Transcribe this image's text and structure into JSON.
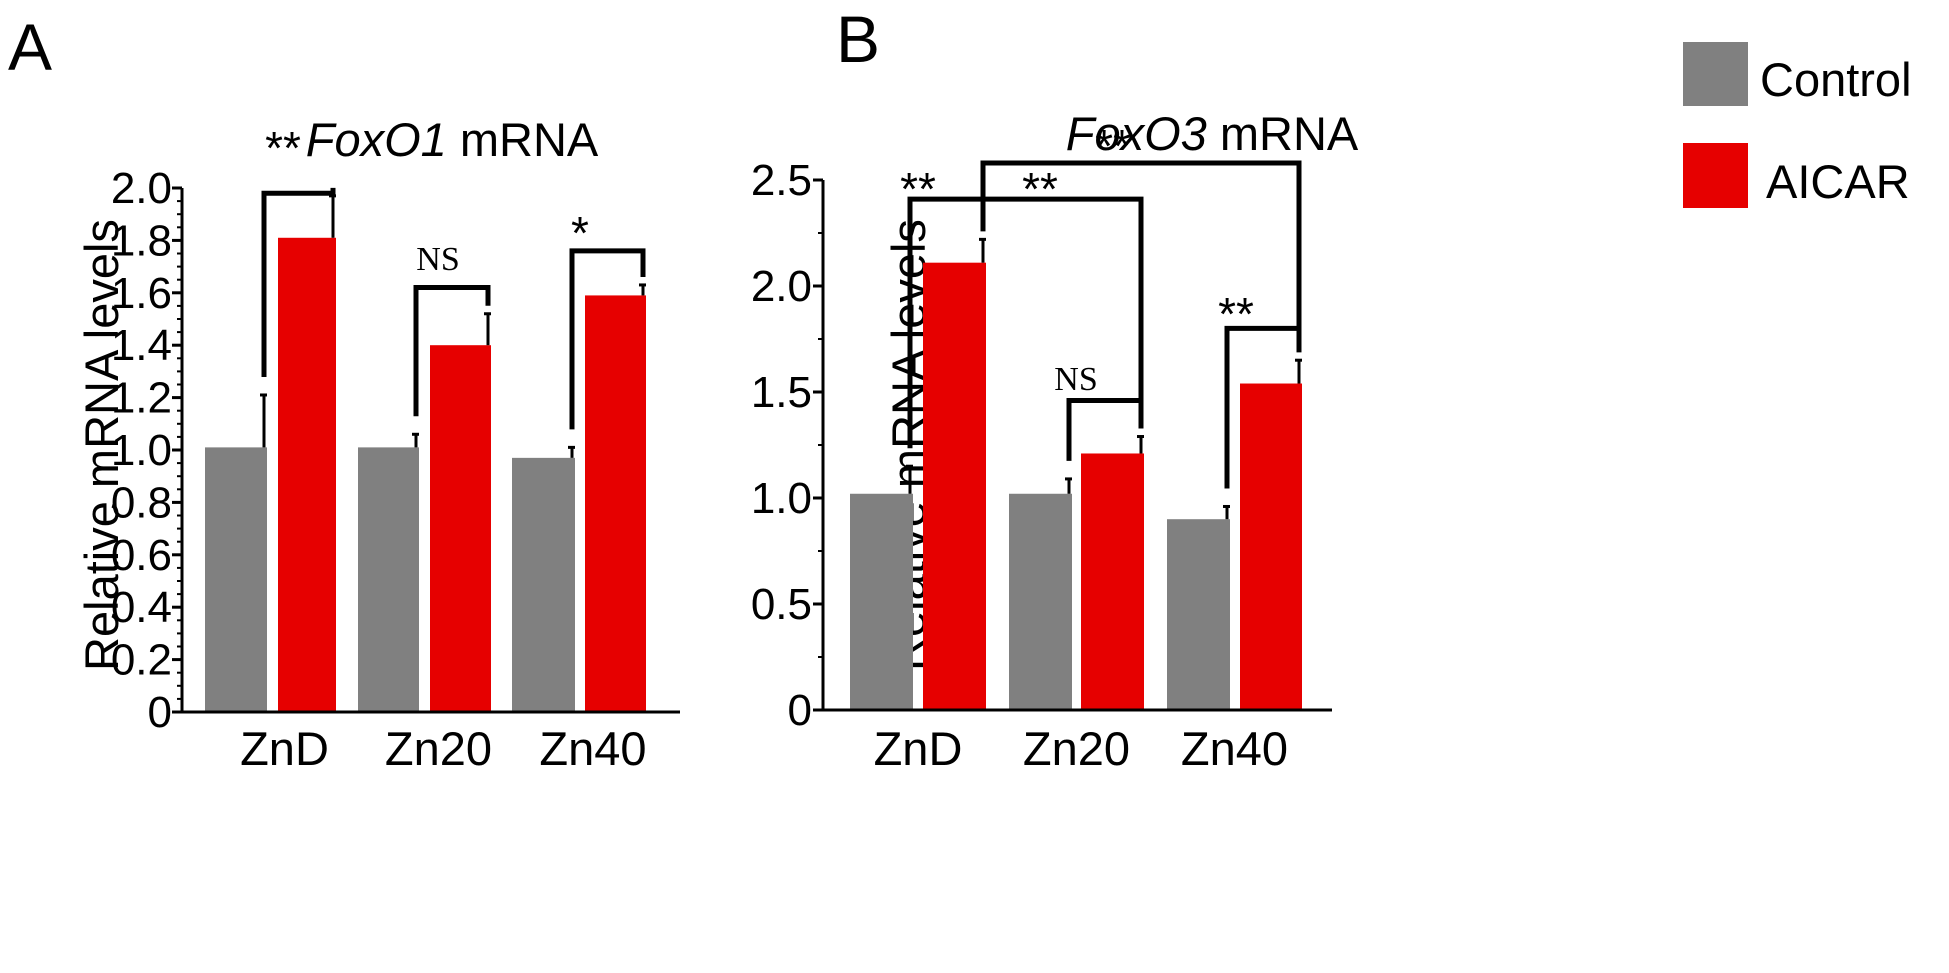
{
  "panels": [
    {
      "panel_label": "A",
      "title_italic": "FoxO1",
      "title_rest": " mRNA"
    },
    {
      "panel_label": "B",
      "title_italic": "FoxO3",
      "title_rest": " mRNA"
    }
  ],
  "legend": {
    "items": [
      {
        "label": "Control",
        "color": "#808080"
      },
      {
        "label": "AICAR",
        "color": "#e60000"
      }
    ]
  },
  "chart_data": [
    {
      "type": "bar",
      "title": "FoxO1 mRNA",
      "xlabel": "",
      "ylabel": "Relative mRNA levels",
      "ylim": [
        0,
        2.0
      ],
      "yticks": [
        "0",
        "0.2",
        "0.4",
        "0.6",
        "0.8",
        "1.0",
        "1.2",
        "1.4",
        "1.6",
        "1.8",
        "2.0"
      ],
      "categories": [
        "ZnD",
        "Zn20",
        "Zn40"
      ],
      "series": [
        {
          "name": "Control",
          "color": "#808080",
          "values": [
            1.01,
            1.01,
            0.97
          ],
          "errors": [
            0.2,
            0.05,
            0.04
          ]
        },
        {
          "name": "AICAR",
          "color": "#e60000",
          "values": [
            1.81,
            1.4,
            1.59
          ],
          "errors": [
            0.16,
            0.12,
            0.04
          ]
        }
      ],
      "comparisons": [
        {
          "from": [
            "ZnD",
            "Control"
          ],
          "to": [
            "ZnD",
            "AICAR"
          ],
          "label": "**"
        },
        {
          "from": [
            "Zn20",
            "Control"
          ],
          "to": [
            "Zn20",
            "AICAR"
          ],
          "label": "NS"
        },
        {
          "from": [
            "Zn40",
            "Control"
          ],
          "to": [
            "Zn40",
            "AICAR"
          ],
          "label": "*"
        }
      ]
    },
    {
      "type": "bar",
      "title": "FoxO3 mRNA",
      "xlabel": "",
      "ylabel": "Relative mRNA levels",
      "ylim": [
        0,
        2.5
      ],
      "yticks": [
        "0",
        "0.5",
        "1.0",
        "1.5",
        "2.0",
        "2.5"
      ],
      "categories": [
        "ZnD",
        "Zn20",
        "Zn40"
      ],
      "series": [
        {
          "name": "Control",
          "color": "#808080",
          "values": [
            1.02,
            1.02,
            0.9
          ],
          "errors": [
            0.13,
            0.07,
            0.06
          ]
        },
        {
          "name": "AICAR",
          "color": "#e60000",
          "values": [
            2.11,
            1.21,
            1.54
          ],
          "errors": [
            0.11,
            0.08,
            0.11
          ]
        }
      ],
      "comparisons": [
        {
          "from": [
            "ZnD",
            "Control"
          ],
          "to": [
            "ZnD",
            "AICAR"
          ],
          "label": "**"
        },
        {
          "from": [
            "Zn20",
            "Control"
          ],
          "to": [
            "Zn20",
            "AICAR"
          ],
          "label": "NS"
        },
        {
          "from": [
            "Zn40",
            "Control"
          ],
          "to": [
            "Zn40",
            "AICAR"
          ],
          "label": "**"
        },
        {
          "from": [
            "ZnD",
            "AICAR"
          ],
          "to": [
            "Zn20",
            "AICAR"
          ],
          "label": "**"
        },
        {
          "from": [
            "ZnD",
            "AICAR"
          ],
          "to": [
            "Zn40",
            "AICAR"
          ],
          "label": "**"
        }
      ]
    }
  ]
}
